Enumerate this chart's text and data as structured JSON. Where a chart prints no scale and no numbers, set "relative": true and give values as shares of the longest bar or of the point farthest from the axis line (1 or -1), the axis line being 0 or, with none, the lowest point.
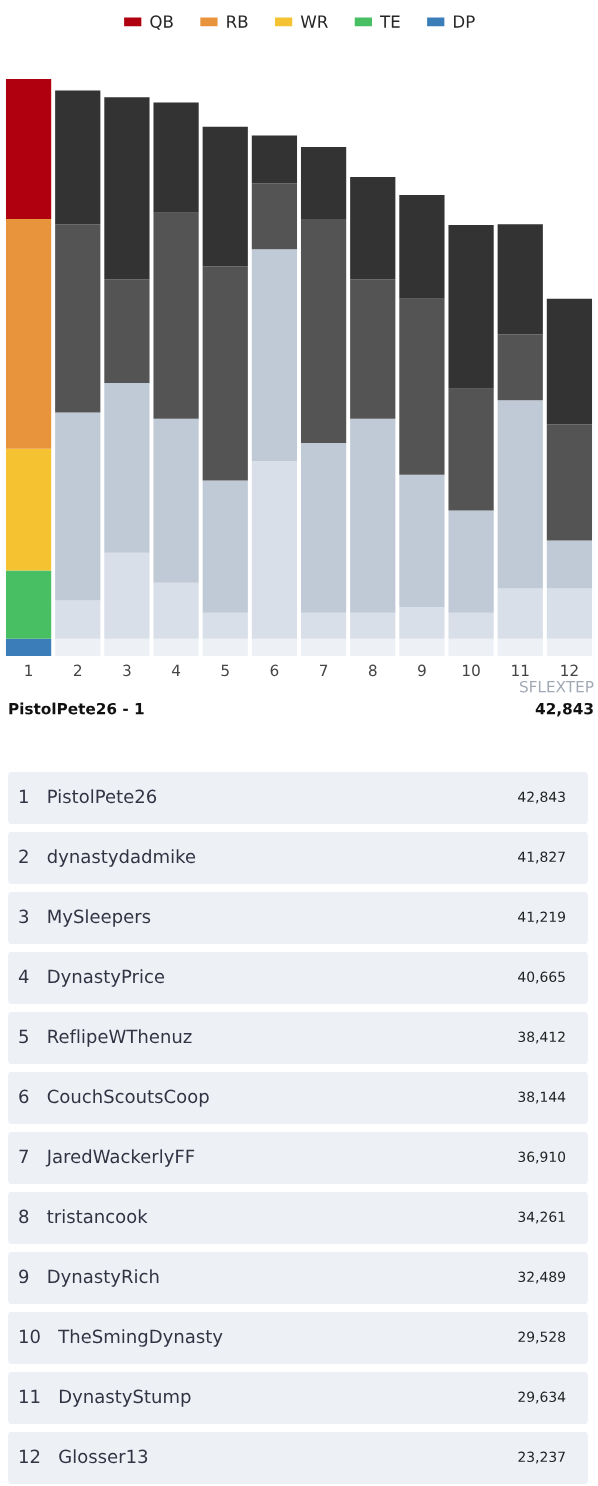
{
  "chart_data": [
    {
      "type": "bar",
      "stacked": true,
      "relative": true,
      "legend": "top",
      "grid": false,
      "categories": [
        "1",
        "2",
        "3",
        "4",
        "5",
        "6",
        "7",
        "8",
        "9",
        "10",
        "11",
        "12"
      ],
      "series": [
        {
          "name": "DP",
          "color": "#3a7db8",
          "colors": [
            "#3a7db8",
            "#edf1f6",
            "#edf1f6",
            "#edf1f6",
            "#edf1f6",
            "#edf1f6",
            "#edf1f6",
            "#edf1f6",
            "#edf1f6",
            "#edf1f6",
            "#edf1f6",
            "#edf1f6"
          ],
          "values": [
            0.03,
            0.03,
            0.03,
            0.03,
            0.03,
            0.03,
            0.03,
            0.03,
            0.03,
            0.03,
            0.03,
            0.03
          ]
        },
        {
          "name": "TE",
          "color": "#48bf62",
          "colors": [
            "#48bf62",
            "#d8dfe8",
            "#d8dfe8",
            "#d8dfe8",
            "#d8dfe8",
            "#d8dfe8",
            "#d8dfe8",
            "#d8dfe8",
            "#d8dfe8",
            "#d8dfe8",
            "#d8dfe8",
            "#d8dfe8"
          ],
          "values": [
            0.118,
            0.066,
            0.149,
            0.097,
            0.045,
            0.308,
            0.045,
            0.045,
            0.055,
            0.045,
            0.087,
            0.087
          ]
        },
        {
          "name": "WR",
          "color": "#f5c232",
          "colors": [
            "#f5c232",
            "#c0c9d6",
            "#c0c9d6",
            "#c0c9d6",
            "#c0c9d6",
            "#c0c9d6",
            "#c0c9d6",
            "#c0c9d6",
            "#c0c9d6",
            "#c0c9d6",
            "#c0c9d6",
            "#c0c9d6"
          ],
          "values": [
            0.211,
            0.326,
            0.294,
            0.284,
            0.229,
            0.367,
            0.294,
            0.336,
            0.229,
            0.177,
            0.326,
            0.083
          ]
        },
        {
          "name": "RB",
          "color": "#e8943c",
          "colors": [
            "#e8943c",
            "#545454",
            "#545454",
            "#545454",
            "#545454",
            "#545454",
            "#545454",
            "#545454",
            "#545454",
            "#545454",
            "#545454",
            "#545454"
          ],
          "values": [
            0.398,
            0.326,
            0.18,
            0.357,
            0.371,
            0.114,
            0.388,
            0.242,
            0.305,
            0.211,
            0.114,
            0.201
          ]
        },
        {
          "name": "QB",
          "color": "#b0000f",
          "colors": [
            "#b0000f",
            "#333333",
            "#333333",
            "#333333",
            "#333333",
            "#333333",
            "#333333",
            "#333333",
            "#333333",
            "#333333",
            "#333333",
            "#333333"
          ],
          "values": [
            0.243,
            0.232,
            0.315,
            0.191,
            0.242,
            0.083,
            0.125,
            0.177,
            0.18,
            0.284,
            0.191,
            0.218
          ]
        }
      ],
      "annotations": [
        "SFLEXTEP",
        "PistolPete26 - 1",
        "42,843"
      ]
    },
    {
      "type": "other",
      "annotations": [
        "1   PistolPete26",
        "42,843",
        "2   dynastydadmike",
        "41,827",
        "3   MySleepers",
        "41,219",
        "4   DynastyPrice",
        "40,665",
        "5   ReflipeWThenuz",
        "38,412",
        "6   CouchScoutsCoop",
        "38,144",
        "7   JaredWackerlyFF",
        "36,910",
        "8   tristancook",
        "34,261",
        "9   DynastyRich",
        "32,489",
        "10   TheSmingDynasty",
        "29,528",
        "11   DynastyStump",
        "29,634",
        "12   Glosser13",
        "23,237"
      ]
    }
  ]
}
